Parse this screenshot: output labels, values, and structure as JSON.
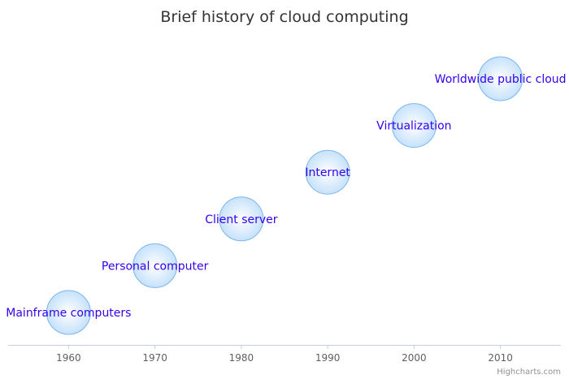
{
  "chart_data": {
    "type": "scatter",
    "title": "Brief history of cloud computing",
    "xlabel": "",
    "ylabel": "",
    "xlim": [
      1953,
      2017
    ],
    "ylim": [
      0,
      6
    ],
    "x_ticks": [
      "1960",
      "1970",
      "1980",
      "1990",
      "2000",
      "2010"
    ],
    "grid": false,
    "legend": "none",
    "points": [
      {
        "x": 1960,
        "y": 1,
        "label": "Mainframe computers"
      },
      {
        "x": 1970,
        "y": 2,
        "label": "Personal computer"
      },
      {
        "x": 1980,
        "y": 3,
        "label": "Client server"
      },
      {
        "x": 1990,
        "y": 4,
        "label": "Internet"
      },
      {
        "x": 2000,
        "y": 5,
        "label": "Virtualization"
      },
      {
        "x": 2010,
        "y": 6,
        "label": "Worldwide public cloud"
      }
    ]
  },
  "credits": "Highcharts.com",
  "colors": {
    "label": "#3300ee",
    "bubble_stroke": "#7cb5ec",
    "bubble_fill_light": "#ffffff",
    "bubble_fill_dark": "#c6e2fb",
    "axis": "#c0d0e0"
  }
}
